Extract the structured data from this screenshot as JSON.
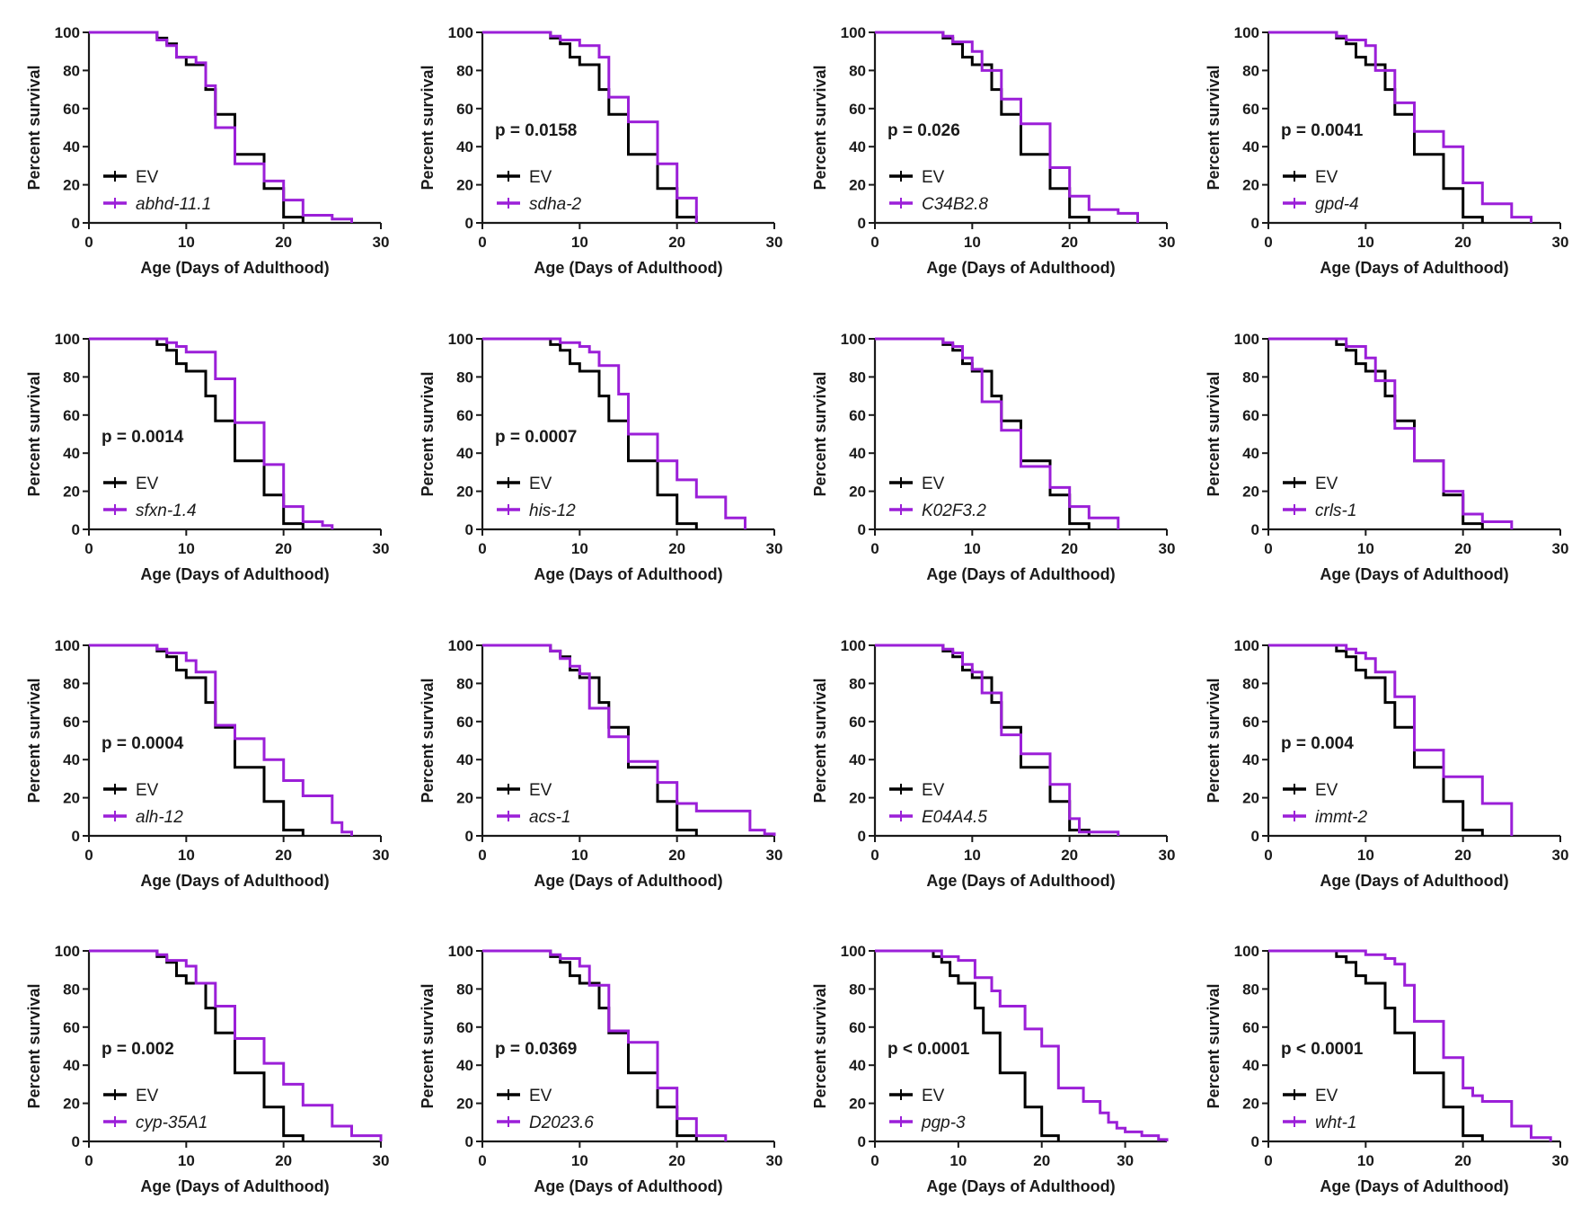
{
  "colors": {
    "control": "#000000",
    "treatment": "#9b1fd8",
    "axis": "#1a1a1a"
  },
  "ev_curve": [
    [
      0,
      100
    ],
    [
      6,
      100
    ],
    [
      7,
      97
    ],
    [
      8,
      94
    ],
    [
      9,
      87
    ],
    [
      10,
      83
    ],
    [
      12,
      70
    ],
    [
      13,
      57
    ],
    [
      15,
      36
    ],
    [
      18,
      18
    ],
    [
      20,
      3
    ],
    [
      22,
      0
    ]
  ],
  "chart_data": [
    {
      "type": "line",
      "title": "",
      "xlabel": "Age (Days of Adulthood)",
      "ylabel": "Percent survival",
      "xlim": [
        0,
        30
      ],
      "ylim": [
        0,
        100
      ],
      "xticks": [
        0,
        10,
        20,
        30
      ],
      "yticks": [
        0,
        20,
        40,
        60,
        80,
        100
      ],
      "p_value": "",
      "legend": [
        "EV",
        "abhd-11.1"
      ],
      "treatment": [
        [
          0,
          100
        ],
        [
          6,
          100
        ],
        [
          7,
          96
        ],
        [
          8,
          93
        ],
        [
          9,
          87
        ],
        [
          11,
          84
        ],
        [
          12,
          72
        ],
        [
          13,
          50
        ],
        [
          15,
          31
        ],
        [
          18,
          22
        ],
        [
          20,
          12
        ],
        [
          22,
          4
        ],
        [
          25,
          2
        ],
        [
          27,
          0
        ]
      ]
    },
    {
      "type": "line",
      "title": "",
      "xlabel": "Age (Days of Adulthood)",
      "ylabel": "Percent survival",
      "xlim": [
        0,
        30
      ],
      "ylim": [
        0,
        100
      ],
      "xticks": [
        0,
        10,
        20,
        30
      ],
      "yticks": [
        0,
        20,
        40,
        60,
        80,
        100
      ],
      "p_value": "p = 0.0158",
      "legend": [
        "EV",
        "sdha-2"
      ],
      "treatment": [
        [
          0,
          100
        ],
        [
          6,
          100
        ],
        [
          7,
          98
        ],
        [
          8,
          96
        ],
        [
          10,
          93
        ],
        [
          12,
          87
        ],
        [
          13,
          66
        ],
        [
          15,
          53
        ],
        [
          18,
          31
        ],
        [
          20,
          13
        ],
        [
          22,
          0
        ]
      ]
    },
    {
      "type": "line",
      "title": "",
      "xlabel": "Age (Days of Adulthood)",
      "ylabel": "Percent survival",
      "xlim": [
        0,
        30
      ],
      "ylim": [
        0,
        100
      ],
      "xticks": [
        0,
        10,
        20,
        30
      ],
      "yticks": [
        0,
        20,
        40,
        60,
        80,
        100
      ],
      "p_value": "p = 0.026",
      "legend": [
        "EV",
        "C34B2.8"
      ],
      "treatment": [
        [
          0,
          100
        ],
        [
          6,
          100
        ],
        [
          7,
          98
        ],
        [
          8,
          95
        ],
        [
          10,
          90
        ],
        [
          11,
          80
        ],
        [
          13,
          65
        ],
        [
          15,
          52
        ],
        [
          18,
          29
        ],
        [
          20,
          14
        ],
        [
          22,
          7
        ],
        [
          25,
          5
        ],
        [
          27,
          0
        ]
      ]
    },
    {
      "type": "line",
      "title": "",
      "xlabel": "Age (Days of Adulthood)",
      "ylabel": "Percent survival",
      "xlim": [
        0,
        30
      ],
      "ylim": [
        0,
        100
      ],
      "xticks": [
        0,
        10,
        20,
        30
      ],
      "yticks": [
        0,
        20,
        40,
        60,
        80,
        100
      ],
      "p_value": "p = 0.0041",
      "legend": [
        "EV",
        "gpd-4"
      ],
      "treatment": [
        [
          0,
          100
        ],
        [
          6,
          100
        ],
        [
          7,
          98
        ],
        [
          8,
          96
        ],
        [
          10,
          93
        ],
        [
          11,
          80
        ],
        [
          13,
          63
        ],
        [
          15,
          48
        ],
        [
          18,
          40
        ],
        [
          20,
          21
        ],
        [
          22,
          10
        ],
        [
          25,
          3
        ],
        [
          27,
          0
        ]
      ]
    },
    {
      "type": "line",
      "title": "",
      "xlabel": "Age (Days of Adulthood)",
      "ylabel": "Percent survival",
      "xlim": [
        0,
        30
      ],
      "ylim": [
        0,
        100
      ],
      "xticks": [
        0,
        10,
        20,
        30
      ],
      "yticks": [
        0,
        20,
        40,
        60,
        80,
        100
      ],
      "p_value": "p = 0.0014",
      "legend": [
        "EV",
        "sfxn-1.4"
      ],
      "treatment": [
        [
          0,
          100
        ],
        [
          7,
          100
        ],
        [
          8,
          98
        ],
        [
          9,
          96
        ],
        [
          10,
          93
        ],
        [
          13,
          79
        ],
        [
          15,
          56
        ],
        [
          18,
          34
        ],
        [
          20,
          12
        ],
        [
          22,
          4
        ],
        [
          24,
          2
        ],
        [
          25,
          0
        ]
      ]
    },
    {
      "type": "line",
      "title": "",
      "xlabel": "Age (Days of Adulthood)",
      "ylabel": "Percent survival",
      "xlim": [
        0,
        30
      ],
      "ylim": [
        0,
        100
      ],
      "xticks": [
        0,
        10,
        20,
        30
      ],
      "yticks": [
        0,
        20,
        40,
        60,
        80,
        100
      ],
      "p_value": "p = 0.0007",
      "legend": [
        "EV",
        "his-12"
      ],
      "treatment": [
        [
          0,
          100
        ],
        [
          7,
          100
        ],
        [
          8,
          98
        ],
        [
          10,
          96
        ],
        [
          11,
          93
        ],
        [
          12,
          86
        ],
        [
          14,
          71
        ],
        [
          15,
          50
        ],
        [
          18,
          36
        ],
        [
          20,
          26
        ],
        [
          22,
          17
        ],
        [
          25,
          6
        ],
        [
          27,
          0
        ]
      ]
    },
    {
      "type": "line",
      "title": "",
      "xlabel": "Age (Days of Adulthood)",
      "ylabel": "Percent survival",
      "xlim": [
        0,
        30
      ],
      "ylim": [
        0,
        100
      ],
      "xticks": [
        0,
        10,
        20,
        30
      ],
      "yticks": [
        0,
        20,
        40,
        60,
        80,
        100
      ],
      "p_value": "",
      "legend": [
        "EV",
        "K02F3.2"
      ],
      "treatment": [
        [
          0,
          100
        ],
        [
          6,
          100
        ],
        [
          7,
          98
        ],
        [
          8,
          96
        ],
        [
          9,
          90
        ],
        [
          10,
          84
        ],
        [
          11,
          67
        ],
        [
          13,
          52
        ],
        [
          15,
          33
        ],
        [
          18,
          22
        ],
        [
          20,
          12
        ],
        [
          22,
          6
        ],
        [
          25,
          0
        ]
      ]
    },
    {
      "type": "line",
      "title": "",
      "xlabel": "Age (Days of Adulthood)",
      "ylabel": "Percent survival",
      "xlim": [
        0,
        30
      ],
      "ylim": [
        0,
        100
      ],
      "xticks": [
        0,
        10,
        20,
        30
      ],
      "yticks": [
        0,
        20,
        40,
        60,
        80,
        100
      ],
      "p_value": "",
      "legend": [
        "EV",
        "crls-1"
      ],
      "treatment": [
        [
          0,
          100
        ],
        [
          6,
          100
        ],
        [
          8,
          96
        ],
        [
          10,
          90
        ],
        [
          11,
          78
        ],
        [
          13,
          53
        ],
        [
          15,
          36
        ],
        [
          18,
          20
        ],
        [
          20,
          8
        ],
        [
          22,
          4
        ],
        [
          25,
          0
        ]
      ]
    },
    {
      "type": "line",
      "title": "",
      "xlabel": "Age (Days of Adulthood)",
      "ylabel": "Percent survival",
      "xlim": [
        0,
        30
      ],
      "ylim": [
        0,
        100
      ],
      "xticks": [
        0,
        10,
        20,
        30
      ],
      "yticks": [
        0,
        20,
        40,
        60,
        80,
        100
      ],
      "p_value": "p = 0.0004",
      "legend": [
        "EV",
        "alh-12"
      ],
      "treatment": [
        [
          0,
          100
        ],
        [
          6,
          100
        ],
        [
          7,
          98
        ],
        [
          8,
          96
        ],
        [
          10,
          92
        ],
        [
          11,
          86
        ],
        [
          13,
          58
        ],
        [
          15,
          51
        ],
        [
          18,
          40
        ],
        [
          20,
          29
        ],
        [
          22,
          21
        ],
        [
          25,
          7
        ],
        [
          26,
          2
        ],
        [
          27,
          0
        ]
      ]
    },
    {
      "type": "line",
      "title": "",
      "xlabel": "Age (Days of Adulthood)",
      "ylabel": "Percent survival",
      "xlim": [
        0,
        30
      ],
      "ylim": [
        0,
        100
      ],
      "xticks": [
        0,
        10,
        20,
        30
      ],
      "yticks": [
        0,
        20,
        40,
        60,
        80,
        100
      ],
      "p_value": "",
      "legend": [
        "EV",
        "acs-1"
      ],
      "treatment": [
        [
          0,
          100
        ],
        [
          6,
          100
        ],
        [
          7,
          97
        ],
        [
          8,
          93
        ],
        [
          9,
          89
        ],
        [
          10,
          85
        ],
        [
          11,
          67
        ],
        [
          13,
          52
        ],
        [
          15,
          39
        ],
        [
          18,
          28
        ],
        [
          20,
          17
        ],
        [
          22,
          13
        ],
        [
          27,
          13
        ],
        [
          27.5,
          3
        ],
        [
          29,
          1
        ],
        [
          30,
          0
        ]
      ]
    },
    {
      "type": "line",
      "title": "",
      "xlabel": "Age (Days of Adulthood)",
      "ylabel": "Percent survival",
      "xlim": [
        0,
        30
      ],
      "ylim": [
        0,
        100
      ],
      "xticks": [
        0,
        10,
        20,
        30
      ],
      "yticks": [
        0,
        20,
        40,
        60,
        80,
        100
      ],
      "p_value": "",
      "legend": [
        "EV",
        "E04A4.5"
      ],
      "treatment": [
        [
          0,
          100
        ],
        [
          6,
          100
        ],
        [
          7,
          98
        ],
        [
          8,
          96
        ],
        [
          9,
          90
        ],
        [
          10,
          86
        ],
        [
          11,
          75
        ],
        [
          13,
          53
        ],
        [
          15,
          43
        ],
        [
          18,
          27
        ],
        [
          20,
          9
        ],
        [
          21,
          2
        ],
        [
          25,
          0
        ]
      ]
    },
    {
      "type": "line",
      "title": "",
      "xlabel": "Age (Days of Adulthood)",
      "ylabel": "Percent survival",
      "xlim": [
        0,
        30
      ],
      "ylim": [
        0,
        100
      ],
      "xticks": [
        0,
        10,
        20,
        30
      ],
      "yticks": [
        0,
        20,
        40,
        60,
        80,
        100
      ],
      "p_value": "p = 0.004",
      "legend": [
        "EV",
        "immt-2"
      ],
      "treatment": [
        [
          0,
          100
        ],
        [
          7,
          100
        ],
        [
          8,
          98
        ],
        [
          9,
          96
        ],
        [
          10,
          93
        ],
        [
          11,
          86
        ],
        [
          13,
          73
        ],
        [
          15,
          45
        ],
        [
          18,
          31
        ],
        [
          22,
          17
        ],
        [
          25,
          0
        ]
      ]
    },
    {
      "type": "line",
      "title": "",
      "xlabel": "Age (Days of Adulthood)",
      "ylabel": "Percent survival",
      "xlim": [
        0,
        30
      ],
      "ylim": [
        0,
        100
      ],
      "xticks": [
        0,
        10,
        20,
        30
      ],
      "yticks": [
        0,
        20,
        40,
        60,
        80,
        100
      ],
      "p_value": "p = 0.002",
      "legend": [
        "EV",
        "cyp-35A1"
      ],
      "treatment": [
        [
          0,
          100
        ],
        [
          6,
          100
        ],
        [
          7,
          98
        ],
        [
          8,
          95
        ],
        [
          10,
          92
        ],
        [
          11,
          83
        ],
        [
          13,
          71
        ],
        [
          15,
          54
        ],
        [
          18,
          41
        ],
        [
          20,
          30
        ],
        [
          22,
          19
        ],
        [
          25,
          8
        ],
        [
          27,
          3
        ],
        [
          30,
          0
        ]
      ]
    },
    {
      "type": "line",
      "title": "",
      "xlabel": "Age (Days of Adulthood)",
      "ylabel": "Percent survival",
      "xlim": [
        0,
        30
      ],
      "ylim": [
        0,
        100
      ],
      "xticks": [
        0,
        10,
        20,
        30
      ],
      "yticks": [
        0,
        20,
        40,
        60,
        80,
        100
      ],
      "p_value": "p = 0.0369",
      "legend": [
        "EV",
        "D2023.6"
      ],
      "treatment": [
        [
          0,
          100
        ],
        [
          6,
          100
        ],
        [
          7,
          98
        ],
        [
          8,
          96
        ],
        [
          10,
          92
        ],
        [
          11,
          82
        ],
        [
          13,
          58
        ],
        [
          15,
          52
        ],
        [
          18,
          28
        ],
        [
          20,
          12
        ],
        [
          22,
          3
        ],
        [
          25,
          0
        ]
      ]
    },
    {
      "type": "line",
      "title": "",
      "xlabel": "Age (Days of Adulthood)",
      "ylabel": "Percent survival",
      "xlim": [
        0,
        35
      ],
      "ylim": [
        0,
        100
      ],
      "xticks": [
        0,
        10,
        20,
        30
      ],
      "yticks": [
        0,
        20,
        40,
        60,
        80,
        100
      ],
      "p_value": "p < 0.0001",
      "legend": [
        "EV",
        "pgp-3"
      ],
      "treatment": [
        [
          0,
          100
        ],
        [
          7,
          100
        ],
        [
          8,
          97
        ],
        [
          10,
          95
        ],
        [
          12,
          86
        ],
        [
          14,
          79
        ],
        [
          15,
          71
        ],
        [
          18,
          59
        ],
        [
          20,
          50
        ],
        [
          22,
          28
        ],
        [
          25,
          21
        ],
        [
          27,
          15
        ],
        [
          28,
          10
        ],
        [
          29,
          7
        ],
        [
          30,
          5
        ],
        [
          32,
          3
        ],
        [
          34,
          1
        ],
        [
          35,
          0
        ]
      ]
    },
    {
      "type": "line",
      "title": "",
      "xlabel": "Age (Days of Adulthood)",
      "ylabel": "Percent survival",
      "xlim": [
        0,
        30
      ],
      "ylim": [
        0,
        100
      ],
      "xticks": [
        0,
        10,
        20,
        30
      ],
      "yticks": [
        0,
        20,
        40,
        60,
        80,
        100
      ],
      "p_value": "p < 0.0001",
      "legend": [
        "EV",
        "wht-1"
      ],
      "treatment": [
        [
          0,
          100
        ],
        [
          8,
          100
        ],
        [
          10,
          98
        ],
        [
          12,
          96
        ],
        [
          13,
          93
        ],
        [
          14,
          82
        ],
        [
          15,
          63
        ],
        [
          18,
          44
        ],
        [
          20,
          28
        ],
        [
          21,
          24
        ],
        [
          22,
          21
        ],
        [
          25,
          8
        ],
        [
          27,
          2
        ],
        [
          29,
          0
        ]
      ]
    }
  ]
}
